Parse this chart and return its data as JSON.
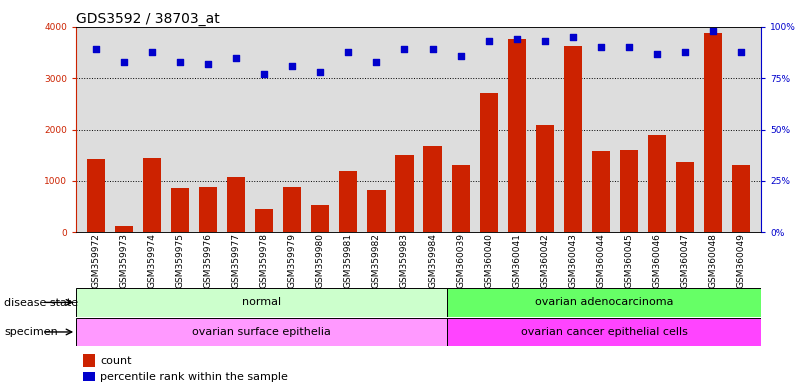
{
  "title": "GDS3592 / 38703_at",
  "categories": [
    "GSM359972",
    "GSM359973",
    "GSM359974",
    "GSM359975",
    "GSM359976",
    "GSM359977",
    "GSM359978",
    "GSM359979",
    "GSM359980",
    "GSM359981",
    "GSM359982",
    "GSM359983",
    "GSM359984",
    "GSM360039",
    "GSM360040",
    "GSM360041",
    "GSM360042",
    "GSM360043",
    "GSM360044",
    "GSM360045",
    "GSM360046",
    "GSM360047",
    "GSM360048",
    "GSM360049"
  ],
  "counts": [
    1420,
    130,
    1450,
    870,
    890,
    1080,
    450,
    880,
    530,
    1200,
    820,
    1500,
    1680,
    1310,
    2720,
    3760,
    2080,
    3630,
    1590,
    1600,
    1890,
    1360,
    3880,
    1310
  ],
  "percentiles": [
    89,
    83,
    88,
    83,
    82,
    85,
    77,
    81,
    78,
    88,
    83,
    89,
    89,
    86,
    93,
    94,
    93,
    95,
    90,
    90,
    87,
    88,
    98,
    88
  ],
  "bar_color": "#CC2200",
  "dot_color": "#0000CC",
  "left_ylim": [
    0,
    4000
  ],
  "right_ylim": [
    0,
    100
  ],
  "left_yticks": [
    0,
    1000,
    2000,
    3000,
    4000
  ],
  "right_yticks": [
    0,
    25,
    50,
    75,
    100
  ],
  "right_yticklabels": [
    "0%",
    "25%",
    "50%",
    "75%",
    "100%"
  ],
  "grid_values": [
    1000,
    2000,
    3000
  ],
  "disease_state_groups": [
    {
      "label": "normal",
      "start": 0,
      "end": 13,
      "color": "#CCFFCC"
    },
    {
      "label": "ovarian adenocarcinoma",
      "start": 13,
      "end": 24,
      "color": "#66FF66"
    }
  ],
  "specimen_groups": [
    {
      "label": "ovarian surface epithelia",
      "start": 0,
      "end": 13,
      "color": "#FF99FF"
    },
    {
      "label": "ovarian cancer epithelial cells",
      "start": 13,
      "end": 24,
      "color": "#FF44FF"
    }
  ],
  "legend_items": [
    {
      "label": "count",
      "color": "#CC2200"
    },
    {
      "label": "percentile rank within the sample",
      "color": "#0000CC"
    }
  ],
  "bg_color": "#DDDDDD",
  "title_fontsize": 10,
  "tick_fontsize": 6.5,
  "label_fontsize": 8,
  "annotation_fontsize": 8
}
